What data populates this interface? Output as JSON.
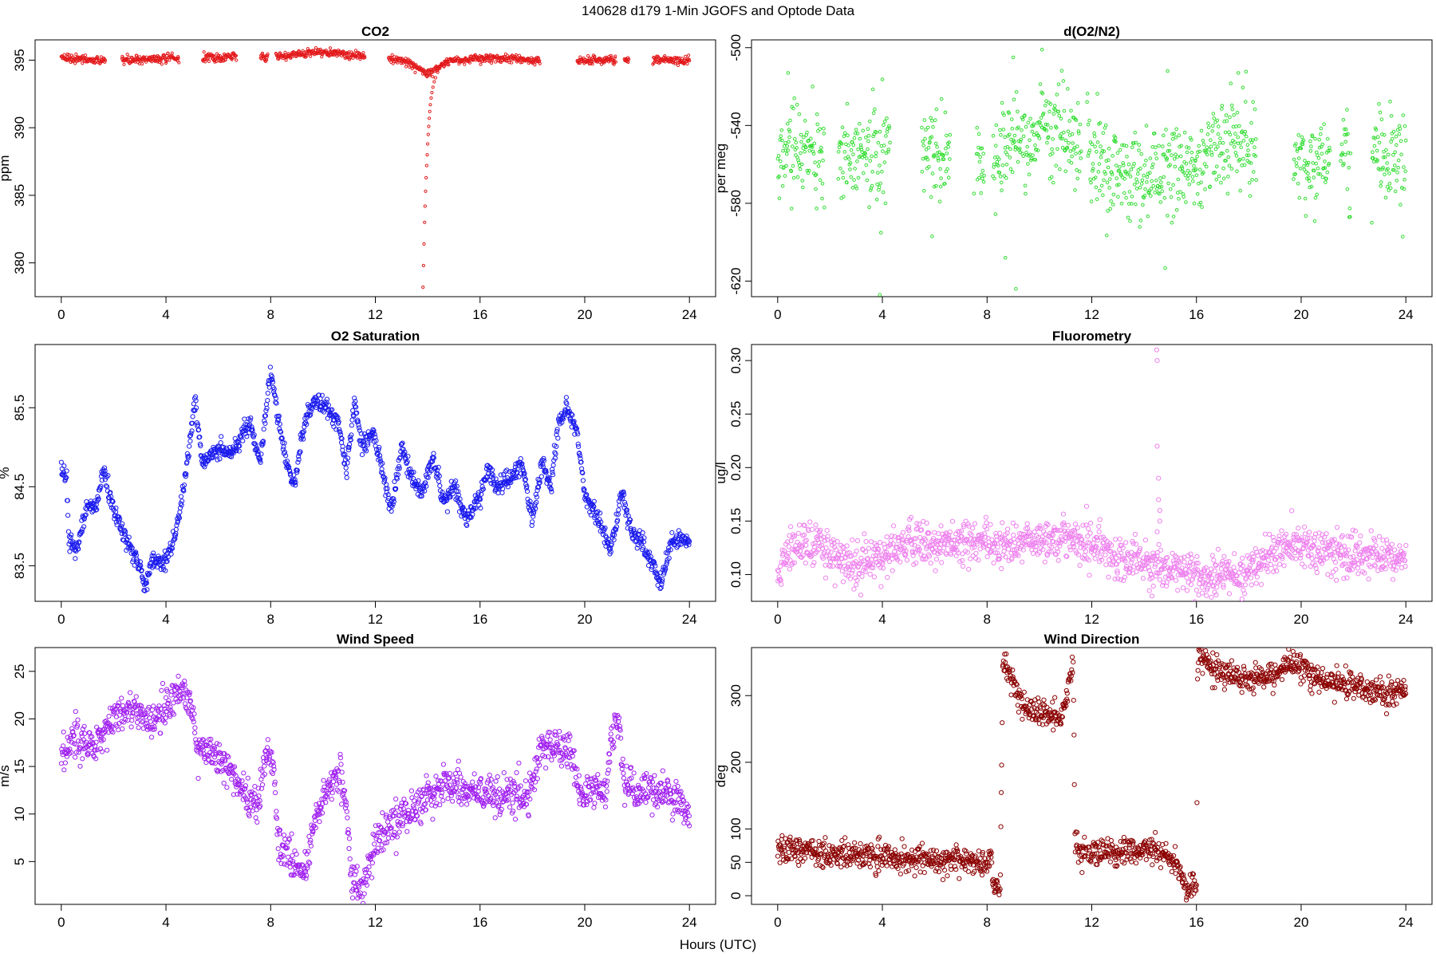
{
  "figure": {
    "title": "140628   d179   1-Min  JGOFS and Optode Data",
    "xlabel": "Hours (UTC)"
  },
  "chart_data": [
    {
      "type": "scatter",
      "title": "CO2",
      "ylabel": "ppm",
      "xlim": [
        -1,
        25
      ],
      "ylim": [
        377.5,
        396.5
      ],
      "xticks": [
        0,
        4,
        8,
        12,
        16,
        20,
        24
      ],
      "yticks": [
        380,
        385,
        390,
        395
      ],
      "color": "#e31a1c",
      "marker_size": 1.6,
      "gaps": [
        [
          1.7,
          2.3
        ],
        [
          4.5,
          5.4
        ],
        [
          6.7,
          7.6
        ],
        [
          7.9,
          8.2
        ],
        [
          11.6,
          12.5
        ],
        [
          18.3,
          19.7
        ],
        [
          21.2,
          21.5
        ],
        [
          21.7,
          22.6
        ]
      ],
      "baseline": [
        [
          0,
          395.3
        ],
        [
          1,
          395.0
        ],
        [
          2,
          395.0
        ],
        [
          4,
          395.1
        ],
        [
          6,
          395.2
        ],
        [
          8,
          395.2
        ],
        [
          9.7,
          395.6
        ],
        [
          11,
          395.4
        ],
        [
          12,
          395.2
        ],
        [
          13,
          395.0
        ],
        [
          14,
          394.0
        ],
        [
          14.5,
          394.6
        ],
        [
          15,
          395.0
        ],
        [
          16,
          395.1
        ],
        [
          17,
          395.2
        ],
        [
          18,
          395.0
        ],
        [
          20,
          395.0
        ],
        [
          24,
          395.0
        ]
      ],
      "noise": 0.15,
      "highlight_points": [
        {
          "x": 13.82,
          "y": 378.2
        },
        {
          "x": 13.84,
          "y": 379.8
        },
        {
          "x": 13.86,
          "y": 381.4
        },
        {
          "x": 13.88,
          "y": 383.0
        },
        {
          "x": 13.9,
          "y": 384.2
        },
        {
          "x": 13.92,
          "y": 385.3
        },
        {
          "x": 13.94,
          "y": 386.3
        },
        {
          "x": 13.96,
          "y": 387.2
        },
        {
          "x": 13.98,
          "y": 388.0
        },
        {
          "x": 14.0,
          "y": 388.8
        },
        {
          "x": 14.02,
          "y": 389.5
        },
        {
          "x": 14.04,
          "y": 390.1
        },
        {
          "x": 14.06,
          "y": 390.7
        },
        {
          "x": 14.08,
          "y": 391.2
        },
        {
          "x": 14.1,
          "y": 391.7
        },
        {
          "x": 14.13,
          "y": 392.2
        },
        {
          "x": 14.16,
          "y": 392.6
        },
        {
          "x": 14.2,
          "y": 393.0
        },
        {
          "x": 14.25,
          "y": 393.4
        },
        {
          "x": 14.3,
          "y": 393.7
        },
        {
          "x": 14.38,
          "y": 394.1
        },
        {
          "x": 14.46,
          "y": 394.4
        },
        {
          "x": 14.55,
          "y": 394.7
        },
        {
          "x": 14.7,
          "y": 394.9
        }
      ]
    },
    {
      "type": "scatter",
      "title": "d(O2/N2)",
      "ylabel": "per meg",
      "xlim": [
        -1,
        25
      ],
      "ylim": [
        -628,
        -496
      ],
      "xticks": [
        0,
        4,
        8,
        12,
        16,
        20,
        24
      ],
      "yticks": [
        -620,
        -580,
        -540,
        -500
      ],
      "color": "#33dd33",
      "marker_size": 1.8,
      "gaps": [
        [
          1.8,
          2.3
        ],
        [
          4.3,
          5.5
        ],
        [
          6.6,
          7.6
        ],
        [
          7.9,
          8.2
        ],
        [
          11.6,
          11.8
        ],
        [
          18.3,
          19.7
        ],
        [
          21.1,
          21.5
        ],
        [
          21.9,
          22.7
        ]
      ],
      "baseline": [
        [
          0,
          -555
        ],
        [
          4,
          -555
        ],
        [
          6,
          -555
        ],
        [
          8,
          -555
        ],
        [
          9.5,
          -545
        ],
        [
          11,
          -545
        ],
        [
          12.5,
          -560
        ],
        [
          14.5,
          -565
        ],
        [
          16,
          -560
        ],
        [
          17.5,
          -550
        ],
        [
          20,
          -558
        ],
        [
          24,
          -555
        ]
      ],
      "noise": 12,
      "highlight_points": [
        {
          "x": 3.9,
          "y": -627
        },
        {
          "x": 9.1,
          "y": -624
        },
        {
          "x": 10.1,
          "y": -501
        },
        {
          "x": 9.0,
          "y": -505
        },
        {
          "x": 0.4,
          "y": -513
        },
        {
          "x": 14.9,
          "y": -512
        },
        {
          "x": 17.6,
          "y": -513
        },
        {
          "x": 7.5,
          "y": -575
        },
        {
          "x": 8.7,
          "y": -608
        },
        {
          "x": 22.7,
          "y": -590
        },
        {
          "x": 5.9,
          "y": -597
        }
      ]
    },
    {
      "type": "scatter",
      "title": "O2 Saturation",
      "ylabel": "%",
      "xlim": [
        -1,
        25
      ],
      "ylim": [
        83.05,
        86.3
      ],
      "xticks": [
        0,
        4,
        8,
        12,
        16,
        20,
        24
      ],
      "yticks": [
        83.5,
        84.5,
        85.5
      ],
      "color": "#1a1aee",
      "marker_size": 2.6,
      "gaps": [],
      "baseline": [
        [
          0,
          84.75
        ],
        [
          0.2,
          84.6
        ],
        [
          0.3,
          83.8
        ],
        [
          0.6,
          83.7
        ],
        [
          1.0,
          84.3
        ],
        [
          1.3,
          84.2
        ],
        [
          1.6,
          84.7
        ],
        [
          2.0,
          84.2
        ],
        [
          2.4,
          83.9
        ],
        [
          2.7,
          83.7
        ],
        [
          3.0,
          83.5
        ],
        [
          3.2,
          83.2
        ],
        [
          3.5,
          83.6
        ],
        [
          3.8,
          83.5
        ],
        [
          4.0,
          83.6
        ],
        [
          4.3,
          83.8
        ],
        [
          4.6,
          84.3
        ],
        [
          4.9,
          85.0
        ],
        [
          5.1,
          85.6
        ],
        [
          5.4,
          84.8
        ],
        [
          6.0,
          85.0
        ],
        [
          6.5,
          84.9
        ],
        [
          7.2,
          85.3
        ],
        [
          7.6,
          84.8
        ],
        [
          8.0,
          86.0
        ],
        [
          8.3,
          85.3
        ],
        [
          8.6,
          84.8
        ],
        [
          8.9,
          84.5
        ],
        [
          9.3,
          85.3
        ],
        [
          9.7,
          85.6
        ],
        [
          10.1,
          85.5
        ],
        [
          10.6,
          85.3
        ],
        [
          10.9,
          84.7
        ],
        [
          11.2,
          85.6
        ],
        [
          11.5,
          85.0
        ],
        [
          11.9,
          85.2
        ],
        [
          12.2,
          84.8
        ],
        [
          12.6,
          84.2
        ],
        [
          13.0,
          85.0
        ],
        [
          13.4,
          84.6
        ],
        [
          13.8,
          84.4
        ],
        [
          14.2,
          84.9
        ],
        [
          14.6,
          84.3
        ],
        [
          15.0,
          84.5
        ],
        [
          15.5,
          84.1
        ],
        [
          15.9,
          84.3
        ],
        [
          16.3,
          84.7
        ],
        [
          16.7,
          84.5
        ],
        [
          17.2,
          84.6
        ],
        [
          17.6,
          84.8
        ],
        [
          18.0,
          84.1
        ],
        [
          18.4,
          84.8
        ],
        [
          18.7,
          84.5
        ],
        [
          19.0,
          85.3
        ],
        [
          19.3,
          85.5
        ],
        [
          19.7,
          85.2
        ],
        [
          20.0,
          84.4
        ],
        [
          20.5,
          84.1
        ],
        [
          21.0,
          83.7
        ],
        [
          21.4,
          84.4
        ],
        [
          21.8,
          83.9
        ],
        [
          22.2,
          83.8
        ],
        [
          22.6,
          83.5
        ],
        [
          22.9,
          83.25
        ],
        [
          23.3,
          83.8
        ],
        [
          23.7,
          83.85
        ],
        [
          24.0,
          83.8
        ]
      ],
      "noise": 0.06,
      "highlight_points": []
    },
    {
      "type": "scatter",
      "title": "Fluorometry",
      "ylabel": "ug/l",
      "xlim": [
        -1,
        25
      ],
      "ylim": [
        0.075,
        0.315
      ],
      "xticks": [
        0,
        4,
        8,
        12,
        16,
        20,
        24
      ],
      "yticks": [
        0.1,
        0.15,
        0.2,
        0.25,
        0.3
      ],
      "color": "#ee82ee",
      "marker_size": 2.6,
      "gaps": [],
      "baseline": [
        [
          0,
          0.1
        ],
        [
          0.3,
          0.12
        ],
        [
          0.5,
          0.13
        ],
        [
          1.5,
          0.13
        ],
        [
          2.0,
          0.12
        ],
        [
          2.8,
          0.11
        ],
        [
          4.2,
          0.12
        ],
        [
          5.0,
          0.13
        ],
        [
          8.0,
          0.13
        ],
        [
          9.0,
          0.13
        ],
        [
          10.5,
          0.135
        ],
        [
          12.0,
          0.13
        ],
        [
          13.0,
          0.115
        ],
        [
          14.0,
          0.11
        ],
        [
          15.0,
          0.105
        ],
        [
          16.5,
          0.1
        ],
        [
          18.0,
          0.1
        ],
        [
          19.0,
          0.125
        ],
        [
          20.0,
          0.125
        ],
        [
          22.0,
          0.12
        ],
        [
          24.0,
          0.115
        ]
      ],
      "noise": 0.01,
      "highlight_points": [
        {
          "x": 14.48,
          "y": 0.31
        },
        {
          "x": 14.5,
          "y": 0.3
        },
        {
          "x": 14.5,
          "y": 0.22
        },
        {
          "x": 14.55,
          "y": 0.19
        },
        {
          "x": 14.55,
          "y": 0.17
        },
        {
          "x": 14.6,
          "y": 0.16
        },
        {
          "x": 14.6,
          "y": 0.15
        },
        {
          "x": 14.5,
          "y": 0.14
        },
        {
          "x": 14.3,
          "y": 0.08
        },
        {
          "x": 14.2,
          "y": 0.085
        },
        {
          "x": 14.7,
          "y": 0.09
        }
      ]
    },
    {
      "type": "scatter",
      "title": "Wind Speed",
      "ylabel": "m/s",
      "xlim": [
        -1,
        25
      ],
      "ylim": [
        0.5,
        27.5
      ],
      "xticks": [
        0,
        4,
        8,
        12,
        16,
        20,
        24
      ],
      "yticks": [
        5,
        10,
        15,
        20,
        25
      ],
      "color": "#a020f0",
      "marker_size": 2.6,
      "gaps": [],
      "baseline": [
        [
          0,
          16.5
        ],
        [
          0.5,
          18.0
        ],
        [
          1.0,
          17.0
        ],
        [
          1.5,
          18.0
        ],
        [
          2.0,
          20.0
        ],
        [
          2.5,
          21.0
        ],
        [
          3.0,
          20.5
        ],
        [
          3.5,
          19.5
        ],
        [
          4.0,
          21.0
        ],
        [
          4.6,
          23.5
        ],
        [
          5.0,
          21.0
        ],
        [
          5.2,
          17.0
        ],
        [
          6.0,
          16.0
        ],
        [
          7.0,
          12.0
        ],
        [
          7.5,
          11.0
        ],
        [
          7.8,
          16.5
        ],
        [
          8.1,
          16.0
        ],
        [
          8.3,
          7.0
        ],
        [
          9.0,
          4.5
        ],
        [
          9.3,
          3.5
        ],
        [
          9.7,
          10.0
        ],
        [
          10.2,
          13.0
        ],
        [
          10.7,
          14.0
        ],
        [
          10.9,
          11.0
        ],
        [
          11.1,
          3.0
        ],
        [
          11.5,
          2.0
        ],
        [
          12.0,
          7.0
        ],
        [
          13.0,
          9.5
        ],
        [
          14.0,
          12.0
        ],
        [
          14.7,
          13.5
        ],
        [
          15.2,
          12.5
        ],
        [
          16.0,
          12.0
        ],
        [
          17.0,
          12.0
        ],
        [
          18.0,
          12.5
        ],
        [
          18.3,
          17.0
        ],
        [
          19.5,
          16.5
        ],
        [
          19.8,
          12.0
        ],
        [
          20.3,
          12.5
        ],
        [
          20.8,
          12.0
        ],
        [
          21.0,
          18.0
        ],
        [
          21.3,
          20.0
        ],
        [
          21.5,
          13.0
        ],
        [
          22.0,
          12.5
        ],
        [
          23.0,
          12.5
        ],
        [
          24.0,
          10.5
        ]
      ],
      "noise": 1.0,
      "highlight_points": []
    },
    {
      "type": "scatter",
      "title": "Wind Direction",
      "ylabel": "deg",
      "xlim": [
        -1,
        25
      ],
      "ylim": [
        -13,
        372
      ],
      "xticks": [
        0,
        4,
        8,
        12,
        16,
        20,
        24
      ],
      "yticks": [
        0,
        50,
        100,
        200,
        300
      ],
      "color": "#8b0000",
      "marker_size": 2.6,
      "gaps": [
        [
          11.8,
          11.85
        ]
      ],
      "baseline": [
        [
          0,
          72
        ],
        [
          0.5,
          75
        ],
        [
          1.0,
          65
        ],
        [
          2.0,
          62
        ],
        [
          3.0,
          60
        ],
        [
          4.0,
          58
        ],
        [
          5.0,
          55
        ],
        [
          6.0,
          52
        ],
        [
          7.0,
          55
        ],
        [
          8.0,
          45
        ],
        [
          8.15,
          80
        ],
        [
          8.2,
          20
        ],
        [
          8.5,
          8
        ],
        [
          8.6,
          355
        ],
        [
          9.0,
          320
        ],
        [
          9.4,
          280
        ],
        [
          10.0,
          275
        ],
        [
          10.5,
          270
        ],
        [
          10.8,
          270
        ],
        [
          11.0,
          290
        ],
        [
          11.3,
          355
        ],
        [
          11.35,
          95
        ],
        [
          11.5,
          60
        ],
        [
          12.0,
          65
        ],
        [
          13.0,
          65
        ],
        [
          14.0,
          70
        ],
        [
          15.0,
          60
        ],
        [
          15.4,
          30
        ],
        [
          15.6,
          15
        ],
        [
          16.0,
          10
        ],
        [
          16.05,
          355
        ],
        [
          17.0,
          335
        ],
        [
          18.0,
          325
        ],
        [
          19.0,
          330
        ],
        [
          19.5,
          350
        ],
        [
          20.5,
          330
        ],
        [
          21.5,
          320
        ],
        [
          22.5,
          310
        ],
        [
          24.0,
          305
        ]
      ],
      "noise": 10,
      "highlight_points": []
    }
  ]
}
